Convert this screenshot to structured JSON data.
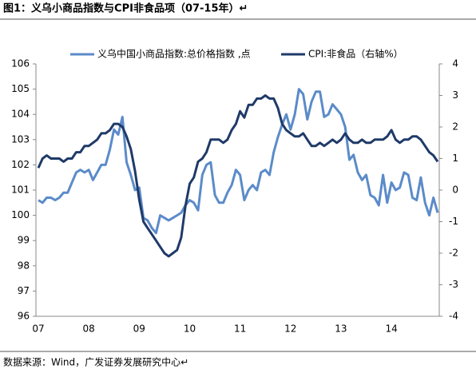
{
  "chart_data": {
    "type": "line",
    "title": "图1：义乌小商品指数与CPI非食品项（07-15年）↵",
    "source": "数据来源：Wind，广发证券发展研究中心↵",
    "categories": [
      "07",
      null,
      null,
      null,
      null,
      null,
      null,
      null,
      null,
      null,
      null,
      null,
      "08",
      null,
      null,
      null,
      null,
      null,
      null,
      null,
      null,
      null,
      null,
      null,
      "09",
      null,
      null,
      null,
      null,
      null,
      null,
      null,
      null,
      null,
      null,
      null,
      "10",
      null,
      null,
      null,
      null,
      null,
      null,
      null,
      null,
      null,
      null,
      null,
      "11",
      null,
      null,
      null,
      null,
      null,
      null,
      null,
      null,
      null,
      null,
      null,
      "12",
      null,
      null,
      null,
      null,
      null,
      null,
      null,
      null,
      null,
      null,
      null,
      "13",
      null,
      null,
      null,
      null,
      null,
      null,
      null,
      null,
      null,
      null,
      null,
      "14",
      null,
      null,
      null,
      null,
      null,
      null,
      null,
      null,
      null,
      null,
      null
    ],
    "series": [
      {
        "name": "义乌中国小商品指数:总价格指数 ,点",
        "color": "#5b8bc9",
        "values": [
          100.6,
          100.5,
          100.7,
          100.7,
          100.6,
          100.7,
          100.9,
          100.9,
          101.3,
          101.7,
          101.8,
          101.7,
          101.8,
          101.4,
          101.7,
          102.0,
          102.0,
          102.6,
          103.4,
          103.2,
          103.9,
          102.1,
          101.6,
          101.0,
          101.1,
          99.9,
          99.8,
          99.5,
          99.3,
          100.0,
          99.9,
          99.8,
          99.9,
          100.0,
          100.1,
          100.4,
          100.6,
          100.5,
          100.2,
          101.6,
          102.0,
          102.1,
          100.8,
          100.5,
          100.5,
          100.9,
          101.2,
          101.8,
          101.6,
          100.6,
          101.0,
          101.2,
          101.0,
          101.7,
          101.8,
          101.6,
          102.5,
          103.1,
          103.6,
          104.0,
          103.4,
          104.0,
          105.0,
          104.8,
          103.8,
          104.5,
          104.9,
          104.9,
          103.9,
          104.0,
          104.4,
          104.2,
          104.0,
          103.5,
          102.2,
          102.4,
          101.7,
          101.4,
          101.6,
          100.8,
          100.7,
          100.4,
          101.6,
          100.5,
          101.3,
          101.0,
          101.1,
          101.7,
          101.6,
          100.7,
          100.6,
          101.5,
          100.5,
          100.0,
          100.7,
          100.1
        ]
      },
      {
        "name": "CPI:非食品（右轴%）",
        "color": "#1f3a68",
        "axis": "y2",
        "values": [
          0.7,
          1.0,
          1.1,
          1.0,
          1.0,
          1.0,
          0.9,
          1.0,
          1.0,
          1.2,
          1.2,
          1.4,
          1.4,
          1.5,
          1.6,
          1.8,
          1.8,
          1.9,
          2.1,
          2.1,
          2.0,
          1.7,
          1.3,
          0.6,
          -0.3,
          -1.0,
          -1.2,
          -1.4,
          -1.6,
          -1.8,
          -2.0,
          -2.1,
          -2.0,
          -1.9,
          -1.5,
          -0.5,
          0.2,
          0.4,
          0.9,
          1.0,
          1.2,
          1.6,
          1.6,
          1.6,
          1.5,
          1.6,
          1.9,
          2.1,
          2.5,
          2.3,
          2.7,
          2.7,
          2.9,
          2.9,
          3.0,
          2.9,
          2.9,
          2.6,
          2.1,
          1.9,
          1.8,
          1.7,
          1.7,
          1.8,
          1.6,
          1.4,
          1.4,
          1.5,
          1.4,
          1.5,
          1.6,
          1.5,
          1.6,
          1.8,
          1.6,
          1.5,
          1.5,
          1.6,
          1.5,
          1.5,
          1.6,
          1.6,
          1.6,
          1.7,
          1.9,
          1.6,
          1.5,
          1.6,
          1.6,
          1.7,
          1.7,
          1.6,
          1.4,
          1.2,
          1.1,
          0.9
        ]
      }
    ],
    "ylim": [
      96,
      106
    ],
    "yticks": [
      96,
      97,
      98,
      99,
      100,
      101,
      102,
      103,
      104,
      105,
      106
    ],
    "y2lim": [
      -4,
      4
    ],
    "y2ticks": [
      -4,
      -3,
      -2,
      -1,
      0,
      1,
      2,
      3,
      4
    ],
    "grid": false,
    "legend": "top"
  }
}
